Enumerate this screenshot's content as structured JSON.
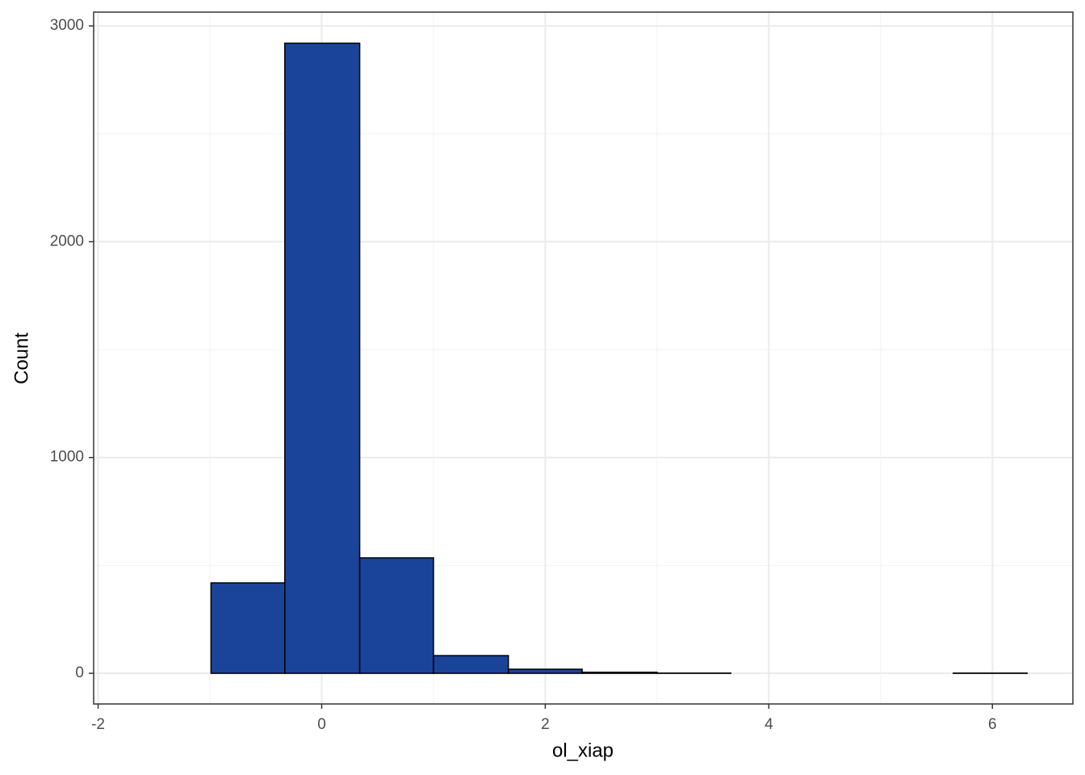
{
  "chart_data": {
    "type": "histogram",
    "x_label": "ol_xiap",
    "y_label": "Count",
    "bins": [
      -1.65,
      -0.99,
      -0.33,
      0.34,
      1.0,
      1.67,
      2.33,
      3.0,
      3.66,
      4.32,
      4.99,
      5.65,
      6.31
    ],
    "counts": [
      0,
      419,
      2920,
      535,
      82,
      19,
      5,
      1,
      0,
      0,
      0,
      1
    ],
    "color": "#1a4499",
    "edge_color": "#000000",
    "xlim": [
      -2.04,
      6.72
    ],
    "ylim": [
      -142,
      3064
    ],
    "xticks": [
      -2,
      0,
      2,
      4,
      6
    ],
    "yticks": [
      0,
      1000,
      2000,
      3000
    ],
    "x_minor_ticks": [
      -1,
      1,
      3,
      5
    ],
    "y_minor_ticks": [
      500,
      1500,
      2500
    ],
    "grid": true
  }
}
